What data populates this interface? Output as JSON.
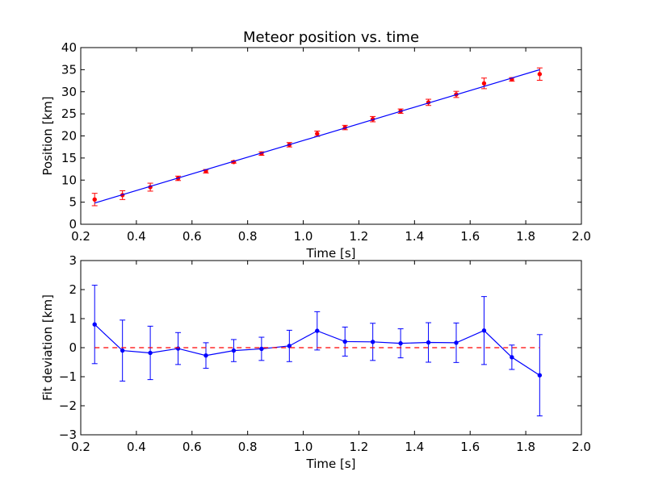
{
  "chart_data": [
    {
      "type": "scatter",
      "title": "Meteor position vs. time",
      "xlabel": "Time [s]",
      "ylabel": "Position [km]",
      "xlim": [
        0.2,
        2.0
      ],
      "ylim": [
        0,
        40
      ],
      "xticks": [
        "0.2",
        "0.4",
        "0.6",
        "0.8",
        "1.0",
        "1.2",
        "1.4",
        "1.6",
        "1.8",
        "2.0"
      ],
      "yticks": [
        "0",
        "5",
        "10",
        "15",
        "20",
        "25",
        "30",
        "35",
        "40"
      ],
      "grid": false,
      "series": [
        {
          "kind": "points-with-errorbars",
          "color": "#ff0000",
          "errorbar_color": "#ff0000",
          "x": [
            0.25,
            0.35,
            0.45,
            0.55,
            0.65,
            0.75,
            0.85,
            0.95,
            1.05,
            1.15,
            1.25,
            1.35,
            1.45,
            1.55,
            1.65,
            1.75,
            1.85
          ],
          "y": [
            5.6,
            6.6,
            8.4,
            10.4,
            12.0,
            14.1,
            16.0,
            18.0,
            20.5,
            21.9,
            23.8,
            25.6,
            27.6,
            29.4,
            31.9,
            32.8,
            34.0
          ],
          "yerr": [
            1.4,
            1.0,
            0.9,
            0.5,
            0.4,
            0.25,
            0.4,
            0.5,
            0.6,
            0.5,
            0.6,
            0.5,
            0.7,
            0.7,
            1.2,
            0.4,
            1.4
          ]
        },
        {
          "kind": "fit-line",
          "color": "#0000ff",
          "x": [
            0.25,
            1.85
          ],
          "y": [
            4.8,
            35.0
          ]
        }
      ]
    },
    {
      "type": "line",
      "title": "",
      "xlabel": "Time [s]",
      "ylabel": "Fit deviation [km]",
      "xlim": [
        0.2,
        2.0
      ],
      "ylim": [
        -3,
        3
      ],
      "xticks": [
        "0.2",
        "0.4",
        "0.6",
        "0.8",
        "1.0",
        "1.2",
        "1.4",
        "1.6",
        "1.8",
        "2.0"
      ],
      "yticks": [
        "−3",
        "−2",
        "−1",
        "0",
        "1",
        "2",
        "3"
      ],
      "grid": false,
      "series": [
        {
          "kind": "line-with-errorbars",
          "color": "#0000ff",
          "x": [
            0.25,
            0.35,
            0.45,
            0.55,
            0.65,
            0.75,
            0.85,
            0.95,
            1.05,
            1.15,
            1.25,
            1.35,
            1.45,
            1.55,
            1.65,
            1.75,
            1.85
          ],
          "y": [
            0.8,
            -0.1,
            -0.18,
            -0.03,
            -0.27,
            -0.1,
            -0.04,
            0.06,
            0.58,
            0.21,
            0.2,
            0.15,
            0.18,
            0.17,
            0.59,
            -0.33,
            -0.95
          ],
          "yerr": [
            1.35,
            1.05,
            0.92,
            0.55,
            0.44,
            0.38,
            0.4,
            0.54,
            0.66,
            0.5,
            0.64,
            0.5,
            0.68,
            0.68,
            1.17,
            0.42,
            1.4
          ]
        },
        {
          "kind": "reference-line",
          "color": "#ff0000",
          "dashed": true,
          "x": [
            0.25,
            1.85
          ],
          "y": [
            0,
            0
          ]
        }
      ]
    }
  ]
}
